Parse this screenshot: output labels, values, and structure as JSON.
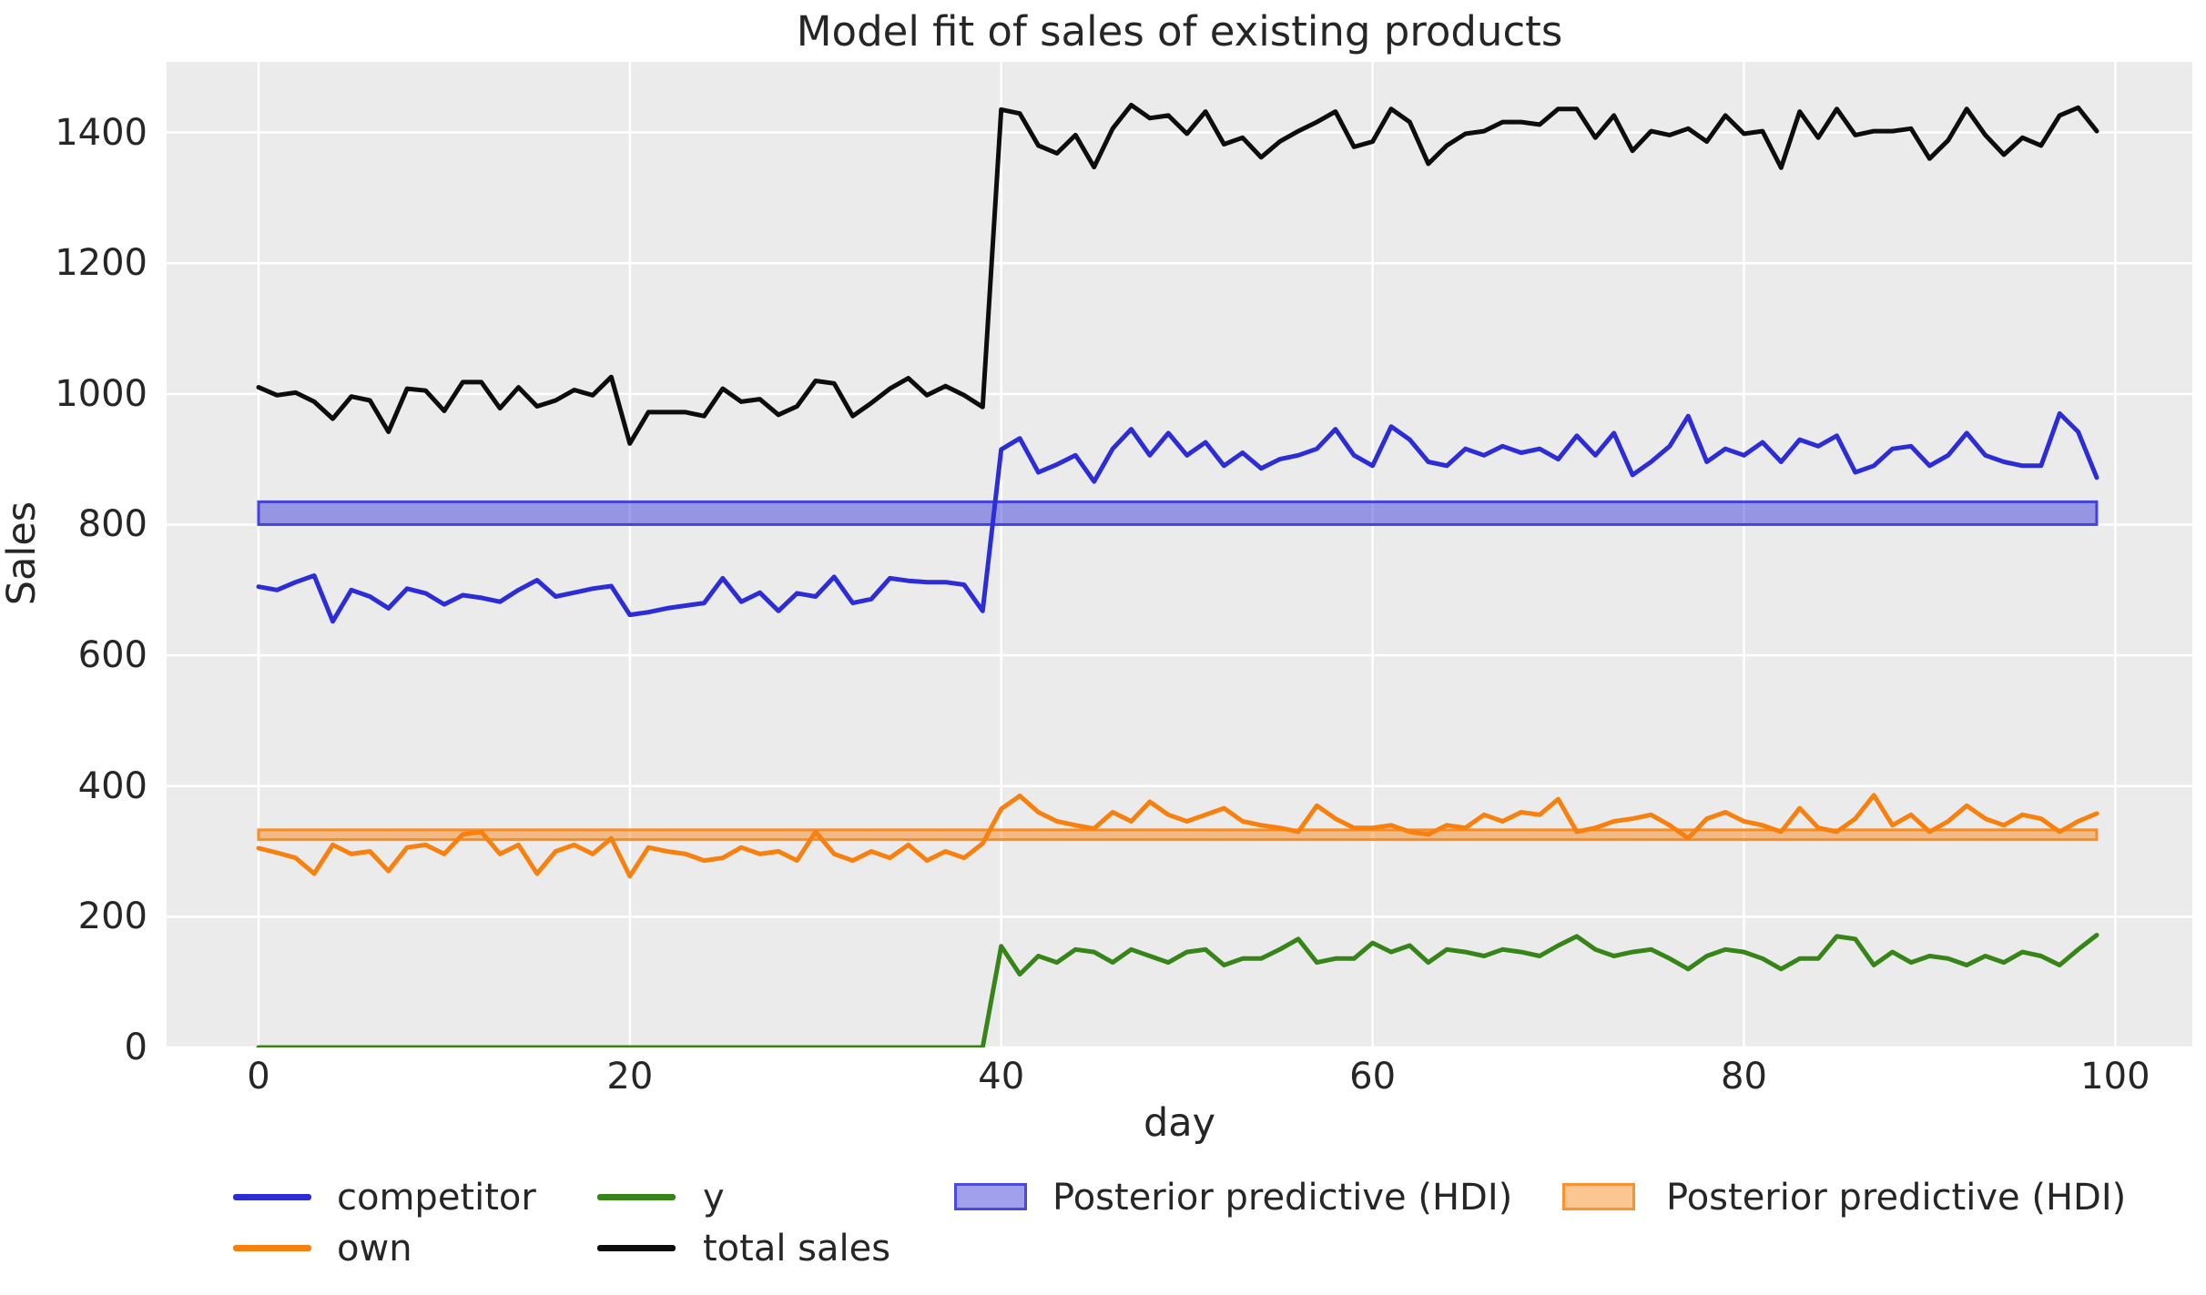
{
  "title": "Model fit of sales of existing products",
  "axes": {
    "xlabel": "day",
    "ylabel": "Sales",
    "x_ticks": [
      0,
      20,
      40,
      60,
      80,
      100
    ],
    "y_ticks": [
      0,
      200,
      400,
      600,
      800,
      1000,
      1200,
      1400
    ]
  },
  "style": {
    "plot_background": "#ebebeb",
    "grid_color": "#ffffff",
    "text_color": "#262626",
    "competitor_color": "#2d2dd8",
    "own_color": "#f8800e",
    "y_color": "#378418",
    "total_color": "#0d0d0d"
  },
  "legend": {
    "items": [
      {
        "label": "competitor",
        "type": "line",
        "color": "#2d2dd8",
        "row": 0,
        "col": 0
      },
      {
        "label": "own",
        "type": "line",
        "color": "#f8800e",
        "row": 1,
        "col": 0
      },
      {
        "label": "y",
        "type": "line",
        "color": "#378418",
        "row": 0,
        "col": 1
      },
      {
        "label": "total sales",
        "type": "line",
        "color": "#0d0d0d",
        "row": 1,
        "col": 1
      },
      {
        "label": "Posterior predictive (HDI)",
        "type": "patch",
        "color": "#2d2dd8",
        "row": 0,
        "col": 2
      },
      {
        "label": "Posterior predictive (HDI)",
        "type": "patch",
        "color": "#f8800e",
        "row": 0,
        "col": 3
      }
    ]
  },
  "chart_data": {
    "type": "line",
    "title": "Model fit of sales of existing products",
    "xlabel": "day",
    "ylabel": "Sales",
    "xlim": [
      -4.95,
      104.15
    ],
    "ylim": [
      0,
      1508
    ],
    "grid": true,
    "legend_position": "below",
    "step_change_at_day": 40,
    "x": [
      0,
      1,
      2,
      3,
      4,
      5,
      6,
      7,
      8,
      9,
      10,
      11,
      12,
      13,
      14,
      15,
      16,
      17,
      18,
      19,
      20,
      21,
      22,
      23,
      24,
      25,
      26,
      27,
      28,
      29,
      30,
      31,
      32,
      33,
      34,
      35,
      36,
      37,
      38,
      39,
      40,
      41,
      42,
      43,
      44,
      45,
      46,
      47,
      48,
      49,
      50,
      51,
      52,
      53,
      54,
      55,
      56,
      57,
      58,
      59,
      60,
      61,
      62,
      63,
      64,
      65,
      66,
      67,
      68,
      69,
      70,
      71,
      72,
      73,
      74,
      75,
      76,
      77,
      78,
      79,
      80,
      81,
      82,
      83,
      84,
      85,
      86,
      87,
      88,
      89,
      90,
      91,
      92,
      93,
      94,
      95,
      96,
      97,
      98,
      99
    ],
    "series": [
      {
        "name": "competitor",
        "color": "#2d2dd8",
        "values": [
          705,
          700,
          712,
          722,
          652,
          700,
          690,
          672,
          702,
          695,
          678,
          692,
          688,
          682,
          700,
          715,
          690,
          696,
          702,
          706,
          662,
          666,
          672,
          676,
          680,
          718,
          682,
          696,
          668,
          695,
          690,
          720,
          680,
          686,
          718,
          714,
          712,
          712,
          708,
          668,
          915,
          932,
          880,
          892,
          906,
          866,
          916,
          946,
          906,
          940,
          906,
          926,
          890,
          910,
          886,
          900,
          906,
          916,
          946,
          906,
          890,
          950,
          930,
          896,
          890,
          916,
          906,
          920,
          910,
          916,
          900,
          936,
          906,
          940,
          876,
          896,
          920,
          966,
          896,
          916,
          906,
          926,
          896,
          930,
          920,
          936,
          880,
          890,
          916,
          920,
          890,
          906,
          940,
          906,
          896,
          890,
          890,
          970,
          942,
          872
        ]
      },
      {
        "name": "own",
        "color": "#f8800e",
        "values": [
          305,
          298,
          290,
          266,
          310,
          296,
          300,
          270,
          306,
          310,
          296,
          326,
          330,
          296,
          310,
          266,
          300,
          310,
          296,
          320,
          262,
          306,
          300,
          296,
          286,
          290,
          306,
          296,
          300,
          286,
          330,
          296,
          286,
          300,
          290,
          310,
          286,
          300,
          290,
          312,
          365,
          385,
          360,
          346,
          340,
          335,
          360,
          346,
          376,
          356,
          346,
          356,
          366,
          346,
          340,
          336,
          330,
          370,
          350,
          336,
          336,
          340,
          330,
          326,
          340,
          336,
          356,
          346,
          360,
          356,
          380,
          330,
          336,
          346,
          350,
          356,
          340,
          320,
          350,
          360,
          346,
          340,
          330,
          366,
          336,
          330,
          350,
          386,
          340,
          356,
          330,
          346,
          370,
          350,
          340,
          356,
          350,
          330,
          346,
          358
        ]
      },
      {
        "name": "y",
        "color": "#378418",
        "values": [
          0,
          0,
          0,
          0,
          0,
          0,
          0,
          0,
          0,
          0,
          0,
          0,
          0,
          0,
          0,
          0,
          0,
          0,
          0,
          0,
          0,
          0,
          0,
          0,
          0,
          0,
          0,
          0,
          0,
          0,
          0,
          0,
          0,
          0,
          0,
          0,
          0,
          0,
          0,
          0,
          155,
          112,
          140,
          130,
          150,
          146,
          130,
          150,
          140,
          130,
          146,
          150,
          126,
          136,
          136,
          150,
          166,
          130,
          136,
          136,
          160,
          146,
          156,
          130,
          150,
          146,
          140,
          150,
          146,
          140,
          156,
          170,
          150,
          140,
          146,
          150,
          136,
          120,
          140,
          150,
          146,
          136,
          120,
          136,
          136,
          170,
          166,
          126,
          146,
          130,
          140,
          136,
          126,
          140,
          130,
          146,
          140,
          126,
          150,
          172
        ]
      },
      {
        "name": "total sales",
        "color": "#0d0d0d",
        "values": [
          1010,
          998,
          1002,
          988,
          962,
          996,
          990,
          942,
          1008,
          1005,
          974,
          1018,
          1018,
          978,
          1010,
          981,
          990,
          1006,
          998,
          1026,
          924,
          972,
          972,
          972,
          966,
          1008,
          988,
          992,
          968,
          981,
          1020,
          1016,
          966,
          986,
          1008,
          1024,
          998,
          1012,
          998,
          980,
          1435,
          1429,
          1380,
          1368,
          1396,
          1347,
          1406,
          1442,
          1422,
          1426,
          1398,
          1432,
          1382,
          1392,
          1362,
          1386,
          1402,
          1416,
          1432,
          1378,
          1386,
          1436,
          1416,
          1352,
          1380,
          1398,
          1402,
          1416,
          1416,
          1412,
          1436,
          1436,
          1392,
          1426,
          1372,
          1402,
          1396,
          1406,
          1386,
          1426,
          1398,
          1402,
          1346,
          1432,
          1392,
          1436,
          1396,
          1402,
          1402,
          1406,
          1360,
          1388,
          1436,
          1396,
          1366,
          1392,
          1380,
          1426,
          1438,
          1402
        ]
      }
    ],
    "hdi_bands": [
      {
        "name": "Posterior predictive (HDI)",
        "series": "competitor",
        "color": "#2d2dd8",
        "fill_alpha": 0.45,
        "edge_alpha": 0.85,
        "x_range": [
          0,
          99
        ],
        "lower": 800,
        "upper": 835
      },
      {
        "name": "Posterior predictive (HDI)",
        "series": "own",
        "color": "#f8800e",
        "fill_alpha": 0.45,
        "edge_alpha": 0.85,
        "x_range": [
          0,
          99
        ],
        "lower": 318,
        "upper": 333
      }
    ]
  }
}
